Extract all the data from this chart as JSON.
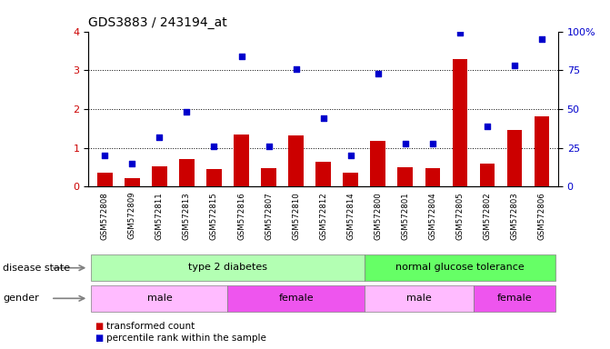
{
  "title": "GDS3883 / 243194_at",
  "samples": [
    "GSM572808",
    "GSM572809",
    "GSM572811",
    "GSM572813",
    "GSM572815",
    "GSM572816",
    "GSM572807",
    "GSM572810",
    "GSM572812",
    "GSM572814",
    "GSM572800",
    "GSM572801",
    "GSM572804",
    "GSM572805",
    "GSM572802",
    "GSM572803",
    "GSM572806"
  ],
  "bar_values": [
    0.35,
    0.22,
    0.52,
    0.72,
    0.45,
    1.35,
    0.48,
    1.32,
    0.65,
    0.35,
    1.18,
    0.5,
    0.48,
    3.28,
    0.6,
    1.47,
    1.82
  ],
  "dot_values_pct": [
    20,
    15,
    32,
    48,
    26,
    84,
    26,
    76,
    44,
    20,
    73,
    28,
    28,
    99,
    39,
    78,
    95
  ],
  "bar_color": "#cc0000",
  "dot_color": "#0000cc",
  "ylim_left": [
    0,
    4
  ],
  "ylim_right": [
    0,
    100
  ],
  "yticks_left": [
    0,
    1,
    2,
    3,
    4
  ],
  "yticks_right": [
    0,
    25,
    50,
    75,
    100
  ],
  "ytick_labels_right": [
    "0",
    "25",
    "50",
    "75",
    "100%"
  ],
  "grid_values": [
    1,
    2,
    3
  ],
  "disease_state_groups": [
    {
      "label": "type 2 diabetes",
      "start": 0,
      "end": 9,
      "color": "#b3ffb3"
    },
    {
      "label": "normal glucose tolerance",
      "start": 10,
      "end": 16,
      "color": "#66ff66"
    }
  ],
  "gender_groups": [
    {
      "label": "male",
      "start": 0,
      "end": 4,
      "color": "#ffbbff"
    },
    {
      "label": "female",
      "start": 5,
      "end": 9,
      "color": "#ee55ee"
    },
    {
      "label": "male",
      "start": 10,
      "end": 13,
      "color": "#ffbbff"
    },
    {
      "label": "female",
      "start": 14,
      "end": 16,
      "color": "#ee55ee"
    }
  ],
  "legend_items": [
    {
      "label": "transformed count",
      "color": "#cc0000"
    },
    {
      "label": "percentile rank within the sample",
      "color": "#0000cc"
    }
  ],
  "disease_state_label": "disease state",
  "gender_label": "gender",
  "background_color": "#ffffff",
  "plot_bg_color": "#ffffff",
  "xtick_bg_color": "#cccccc"
}
